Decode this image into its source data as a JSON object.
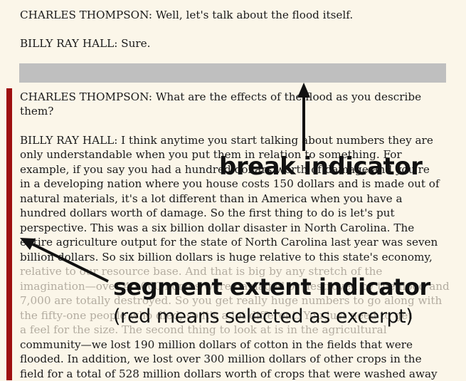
{
  "transcript": {
    "lines_before_break": [
      "CHARLES THOMPSON: Well, let's talk about the flood itself.",
      "BILLY RAY HALL: Sure."
    ],
    "excerpt_lines": [
      "CHARLES THOMPSON: What are the effects of the flood as you describe",
      "them?",
      "BILLY RAY HALL: I think anytime you start talking about numbers they are",
      "only understandable when you put them in relation to something. For",
      "example, if you say you had a hundred dollars worth of damage and you're",
      "in a developing nation where you house costs 150 dollars and is made out of",
      "natural materials, it's a lot different than in America when you have a",
      "hundred dollars worth of damage. So the first thing to do is let's put",
      "perspective. This was a six billion dollar disaster in North Carolina. The",
      "entire agriculture output for the state of North Carolina last year was seven",
      "billion dollars. So six billion dollars is huge relative to this state's economy,",
      "relative to our resource base. And that is big by any stretch of the",
      "imagination—over 40,000 homes were damaged or destroyed by the flood and",
      "7,000 are totally destroyed. So you get really huge numbers to go along with",
      "the fifty-one people who died, so it's a lot different. You just need to get",
      "a feel for the size. The second thing to look at is in the agricultural",
      "community—we lost 190 million dollars of cotton in the fields that were",
      "flooded. In addition, we lost over 300 million dollars of other crops in the",
      "field for a total of 528 million dollars worth of crops that were washed away"
    ]
  },
  "annotations": {
    "break_indicator": "break indicator",
    "segment_indicator": "segment extent indicator",
    "segment_note": "(red means selected as excerpt)"
  },
  "colors": {
    "background": "#fbf6e9",
    "break_bar": "#bfbfbf",
    "segment_selected": "#9e0f0f",
    "faded_text": "#b3aca0"
  }
}
